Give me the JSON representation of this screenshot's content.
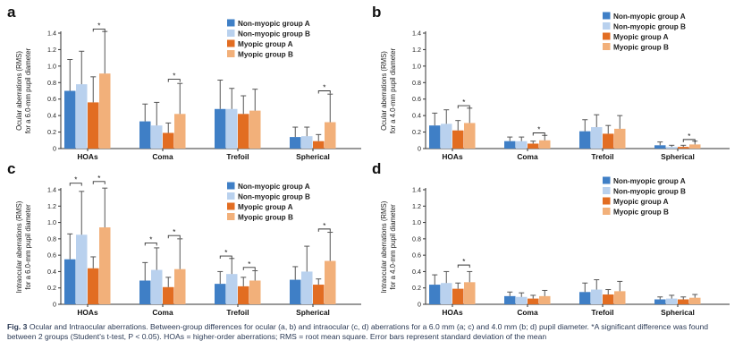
{
  "colors": {
    "Non-myopic group A": "#3f7fc6",
    "Non-myopic group B": "#b9d1ee",
    "Myopic group A": "#e26d22",
    "Myopic group B": "#f2b07a",
    "axis": "#333333",
    "error_bar": "#555555"
  },
  "chart_data": [
    {
      "panel": "a",
      "type": "bar",
      "ylabel": "Ocular aberrations (RMS)\nfor a 6.0-mm pupil diameter",
      "ylim": [
        0,
        1.4
      ],
      "yticks": [
        "0",
        "0.2",
        "0.4",
        "0.6",
        "0.8",
        "1.0",
        "1.2",
        "1.4"
      ],
      "categories": [
        "HOAs",
        "Coma",
        "Trefoil",
        "Spherical"
      ],
      "series": [
        {
          "name": "Non-myopic group A",
          "values": [
            0.7,
            0.33,
            0.48,
            0.14
          ],
          "errors": [
            0.38,
            0.21,
            0.35,
            0.12
          ]
        },
        {
          "name": "Non-myopic group B",
          "values": [
            0.78,
            0.28,
            0.48,
            0.15
          ],
          "errors": [
            0.4,
            0.28,
            0.25,
            0.11
          ]
        },
        {
          "name": "Myopic group A",
          "values": [
            0.56,
            0.19,
            0.42,
            0.09
          ],
          "errors": [
            0.31,
            0.12,
            0.22,
            0.08
          ]
        },
        {
          "name": "Myopic group B",
          "values": [
            0.91,
            0.42,
            0.46,
            0.32
          ],
          "errors": [
            0.51,
            0.37,
            0.26,
            0.34
          ]
        }
      ],
      "significance": [
        {
          "category": 0,
          "from": 2,
          "to": 3,
          "label": "*",
          "y": 1.45
        },
        {
          "category": 1,
          "from": 2,
          "to": 3,
          "label": "*",
          "y": 0.84
        },
        {
          "category": 3,
          "from": 2,
          "to": 3,
          "label": "*",
          "y": 0.7
        }
      ],
      "legend": "top-right"
    },
    {
      "panel": "b",
      "type": "bar",
      "ylabel": "Ocular aberrations (RMS)\nfor a 4.0-mm pupil diameter",
      "ylim": [
        0,
        1.4
      ],
      "yticks": [
        "0",
        "0.2",
        "0.4",
        "0.6",
        "0.8",
        "1.0",
        "1.2",
        "1.4"
      ],
      "categories": [
        "HOAs",
        "Coma",
        "Trefoil",
        "Spherical"
      ],
      "series": [
        {
          "name": "Non-myopic group A",
          "values": [
            0.28,
            0.09,
            0.21,
            0.04
          ],
          "errors": [
            0.15,
            0.05,
            0.14,
            0.04
          ]
        },
        {
          "name": "Non-myopic group B",
          "values": [
            0.3,
            0.09,
            0.26,
            0.02
          ],
          "errors": [
            0.17,
            0.05,
            0.15,
            0.02
          ]
        },
        {
          "name": "Myopic group A",
          "values": [
            0.22,
            0.06,
            0.18,
            0.02
          ],
          "errors": [
            0.12,
            0.03,
            0.1,
            0.02
          ]
        },
        {
          "name": "Myopic group B",
          "values": [
            0.31,
            0.1,
            0.24,
            0.05
          ],
          "errors": [
            0.18,
            0.06,
            0.16,
            0.04
          ]
        }
      ],
      "significance": [
        {
          "category": 0,
          "from": 2,
          "to": 3,
          "label": "*",
          "y": 0.52
        },
        {
          "category": 1,
          "from": 2,
          "to": 3,
          "label": "*",
          "y": 0.19
        },
        {
          "category": 3,
          "from": 2,
          "to": 3,
          "label": "*",
          "y": 0.11
        }
      ],
      "legend": "top-right"
    },
    {
      "panel": "c",
      "type": "bar",
      "ylabel": "Intraocular aberrations (RMS)\nfor a 6.0-mm pupil diameter",
      "ylim": [
        0,
        1.4
      ],
      "yticks": [
        "0",
        "0.2",
        "0.4",
        "0.6",
        "0.8",
        "1.0",
        "1.2",
        "1.4"
      ],
      "categories": [
        "HOAs",
        "Coma",
        "Trefoil",
        "Spherical"
      ],
      "series": [
        {
          "name": "Non-myopic group A",
          "values": [
            0.55,
            0.29,
            0.25,
            0.3
          ],
          "errors": [
            0.31,
            0.22,
            0.15,
            0.16
          ]
        },
        {
          "name": "Non-myopic group B",
          "values": [
            0.85,
            0.42,
            0.37,
            0.4
          ],
          "errors": [
            0.53,
            0.27,
            0.19,
            0.31
          ]
        },
        {
          "name": "Myopic group A",
          "values": [
            0.44,
            0.21,
            0.22,
            0.24
          ],
          "errors": [
            0.14,
            0.12,
            0.11,
            0.07
          ]
        },
        {
          "name": "Myopic group B",
          "values": [
            0.94,
            0.43,
            0.29,
            0.53
          ],
          "errors": [
            0.48,
            0.37,
            0.12,
            0.35
          ]
        }
      ],
      "significance": [
        {
          "category": 0,
          "from": 0,
          "to": 1,
          "label": "*",
          "y": 1.48
        },
        {
          "category": 0,
          "from": 2,
          "to": 3,
          "label": "*",
          "y": 1.5
        },
        {
          "category": 1,
          "from": 0,
          "to": 1,
          "label": "*",
          "y": 0.75
        },
        {
          "category": 1,
          "from": 2,
          "to": 3,
          "label": "*",
          "y": 0.84
        },
        {
          "category": 2,
          "from": 0,
          "to": 1,
          "label": "*",
          "y": 0.59
        },
        {
          "category": 2,
          "from": 2,
          "to": 3,
          "label": "*",
          "y": 0.45
        },
        {
          "category": 3,
          "from": 2,
          "to": 3,
          "label": "*",
          "y": 0.92
        }
      ],
      "legend": "top-right"
    },
    {
      "panel": "d",
      "type": "bar",
      "ylabel": "Intraocular aberrations (RMS)\nfor a 4.0-mm pupil diameter",
      "ylim": [
        0,
        1.4
      ],
      "yticks": [
        "0",
        "0.2",
        "0.4",
        "0.6",
        "0.8",
        "1.0",
        "1.2",
        "1.4"
      ],
      "categories": [
        "HOAs",
        "Coma",
        "Trefoil",
        "Spherical"
      ],
      "series": [
        {
          "name": "Non-myopic group A",
          "values": [
            0.24,
            0.1,
            0.15,
            0.06
          ],
          "errors": [
            0.12,
            0.05,
            0.11,
            0.03
          ]
        },
        {
          "name": "Non-myopic group B",
          "values": [
            0.26,
            0.09,
            0.18,
            0.07
          ],
          "errors": [
            0.14,
            0.05,
            0.12,
            0.04
          ]
        },
        {
          "name": "Myopic group A",
          "values": [
            0.19,
            0.07,
            0.12,
            0.06
          ],
          "errors": [
            0.07,
            0.04,
            0.06,
            0.03
          ]
        },
        {
          "name": "Myopic group B",
          "values": [
            0.27,
            0.1,
            0.16,
            0.08
          ],
          "errors": [
            0.13,
            0.07,
            0.12,
            0.04
          ]
        }
      ],
      "significance": [
        {
          "category": 0,
          "from": 2,
          "to": 3,
          "label": "*",
          "y": 0.48
        }
      ],
      "legend": "top-right"
    }
  ],
  "caption": {
    "fig_label": "Fig. 3",
    "text": "Ocular and Intraocular aberrations. Between-group differences for ocular (a, b) and intraocular (c, d) aberrations for a 6.0 mm (a; c) and 4.0 mm (b; d) pupil diameter. *A significant difference was found between 2 groups (Student's t-test, P < 0.05). HOAs = higher-order aberrations; RMS = root mean square. Error bars represent standard deviation of the mean"
  }
}
